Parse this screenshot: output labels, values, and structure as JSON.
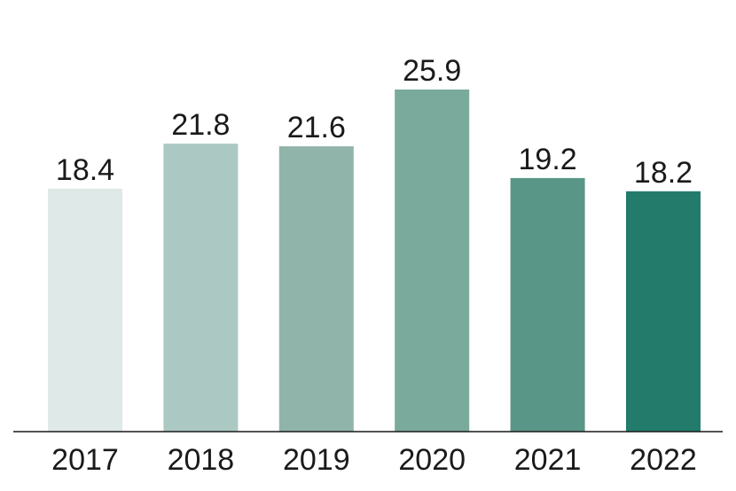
{
  "chart_data": {
    "type": "bar",
    "categories": [
      "2017",
      "2018",
      "2019",
      "2020",
      "2021",
      "2022"
    ],
    "values": [
      18.4,
      21.8,
      21.6,
      25.9,
      19.2,
      18.2
    ],
    "value_labels": [
      "18.4",
      "21.8",
      "21.6",
      "25.9",
      "19.2",
      "18.2"
    ],
    "bar_colors": [
      "#dfe9e7",
      "#abc9c2",
      "#90b3aa",
      "#7aaa9c",
      "#5a9688",
      "#237c6b"
    ],
    "axis_color": "#1a1a1a",
    "ylim": [
      0,
      28
    ],
    "grid": false,
    "legend": "none"
  }
}
